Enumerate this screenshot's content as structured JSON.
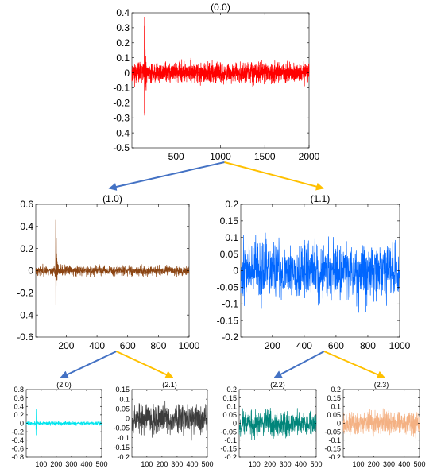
{
  "chart_data": [
    {
      "id": "p00",
      "type": "line",
      "title": "(0.0)",
      "color": "#ff0000",
      "n": 2000,
      "seed": 11,
      "noise": 0.045,
      "spike": {
        "at": 140,
        "up": 0.37,
        "down": -0.41,
        "width": 30
      },
      "xlim": [
        1,
        2000
      ],
      "ylim": [
        -0.5,
        0.4
      ],
      "xticks": [
        500,
        1000,
        1500,
        2000
      ],
      "xtick_labels": [
        "500",
        "1000",
        "1500",
        "2000"
      ],
      "yticks": [
        -0.5,
        -0.4,
        -0.3,
        -0.2,
        -0.1,
        0,
        0.1,
        0.2,
        0.3,
        0.4
      ],
      "ytick_labels": [
        "-0.5",
        "-0.4",
        "-0.3",
        "-0.2",
        "-0.1",
        "0",
        "0.1",
        "0.2",
        "0.3",
        "0.4"
      ]
    },
    {
      "id": "p10",
      "type": "line",
      "title": "(1.0)",
      "color": "#8b4513",
      "n": 1000,
      "seed": 23,
      "noise": 0.032,
      "spike": {
        "at": 130,
        "up": 0.59,
        "down": -0.41,
        "width": 16
      },
      "xlim": [
        1,
        1000
      ],
      "ylim": [
        -0.6,
        0.6
      ],
      "xticks": [
        200,
        400,
        600,
        800,
        1000
      ],
      "xtick_labels": [
        "200",
        "400",
        "600",
        "800",
        "1000"
      ],
      "yticks": [
        -0.6,
        -0.4,
        -0.2,
        0,
        0.2,
        0.4,
        0.6
      ],
      "ytick_labels": [
        "-0.6",
        "-0.4",
        "-0.2",
        "0",
        "0.2",
        "0.4",
        "0.6"
      ]
    },
    {
      "id": "p11",
      "type": "line",
      "title": "(1.1)",
      "color": "#0066ff",
      "n": 1000,
      "seed": 37,
      "noise": 0.06,
      "xlim": [
        1,
        1000
      ],
      "ylim": [
        -0.2,
        0.2
      ],
      "xticks": [
        200,
        400,
        600,
        800,
        1000
      ],
      "xtick_labels": [
        "200",
        "400",
        "600",
        "800",
        "1000"
      ],
      "yticks": [
        -0.2,
        -0.15,
        -0.1,
        -0.05,
        0,
        0.05,
        0.1,
        0.15,
        0.2
      ],
      "ytick_labels": [
        "-0.2",
        "-0.15",
        "-0.1",
        "-0.05",
        "0",
        "0.05",
        "0.1",
        "0.15",
        "0.2"
      ]
    },
    {
      "id": "p20",
      "type": "line",
      "title": "(2.0)",
      "color": "#00e5ee",
      "n": 500,
      "seed": 41,
      "noise": 0.03,
      "spike": {
        "at": 65,
        "up": 0.52,
        "down": -0.45,
        "width": 8
      },
      "xlim": [
        1,
        500
      ],
      "ylim": [
        -0.8,
        0.8
      ],
      "xticks": [
        100,
        200,
        300,
        400,
        500
      ],
      "xtick_labels": [
        "100",
        "200",
        "300",
        "400",
        "500"
      ],
      "yticks": [
        -0.8,
        -0.6,
        -0.4,
        -0.2,
        0,
        0.2,
        0.4,
        0.6,
        0.8
      ],
      "ytick_labels": [
        "-0.8",
        "-0.6",
        "-0.4",
        "-0.2",
        "0",
        "0.2",
        "0.4",
        "0.6",
        "0.8"
      ]
    },
    {
      "id": "p21",
      "type": "line",
      "title": "(2.1)",
      "color": "#3c3c3c",
      "n": 500,
      "seed": 53,
      "noise": 0.055,
      "xlim": [
        1,
        500
      ],
      "ylim": [
        -0.2,
        0.15
      ],
      "xticks": [
        100,
        200,
        300,
        400,
        500
      ],
      "xtick_labels": [
        "100",
        "200",
        "300",
        "400",
        "500"
      ],
      "yticks": [
        -0.2,
        -0.15,
        -0.1,
        -0.05,
        0,
        0.05,
        0.1,
        0.15
      ],
      "ytick_labels": [
        "-0.2",
        "-0.15",
        "-0.1",
        "-0.05",
        "0",
        "0.05",
        "0.1",
        "0.15"
      ]
    },
    {
      "id": "p22",
      "type": "line",
      "title": "(2.2)",
      "color": "#00857a",
      "n": 500,
      "seed": 67,
      "noise": 0.055,
      "xlim": [
        1,
        500
      ],
      "ylim": [
        -0.2,
        0.2
      ],
      "xticks": [
        100,
        200,
        300,
        400,
        500
      ],
      "xtick_labels": [
        "100",
        "200",
        "300",
        "400",
        "500"
      ],
      "yticks": [
        -0.2,
        -0.15,
        -0.1,
        -0.05,
        0,
        0.05,
        0.1,
        0.15,
        0.2
      ],
      "ytick_labels": [
        "-0.2",
        "-0.15",
        "-0.1",
        "-0.05",
        "0",
        "0.05",
        "0.1",
        "0.15",
        "0.2"
      ]
    },
    {
      "id": "p23",
      "type": "line",
      "title": "(2.3)",
      "color": "#f4b183",
      "n": 500,
      "seed": 79,
      "noise": 0.05,
      "xlim": [
        1,
        500
      ],
      "ylim": [
        -0.2,
        0.2
      ],
      "xticks": [
        100,
        200,
        300,
        400,
        500
      ],
      "xtick_labels": [
        "100",
        "200",
        "300",
        "400",
        "500"
      ],
      "yticks": [
        -0.2,
        -0.15,
        -0.1,
        -0.05,
        0,
        0.05,
        0.1,
        0.15,
        0.2
      ],
      "ytick_labels": [
        "-0.2",
        "-0.15",
        "-0.1",
        "-0.05",
        "0",
        "0.05",
        "0.1",
        "0.15",
        "0.2"
      ]
    }
  ],
  "tree": {
    "edges": [
      {
        "from": "p00",
        "to": "p10",
        "side": "left"
      },
      {
        "from": "p00",
        "to": "p11",
        "side": "right"
      },
      {
        "from": "p10",
        "to": "p20",
        "side": "left"
      },
      {
        "from": "p10",
        "to": "p21",
        "side": "right"
      },
      {
        "from": "p11",
        "to": "p22",
        "side": "left"
      },
      {
        "from": "p11",
        "to": "p23",
        "side": "right"
      }
    ],
    "colors": {
      "left": "#4472c4",
      "right": "#ffc000"
    }
  }
}
